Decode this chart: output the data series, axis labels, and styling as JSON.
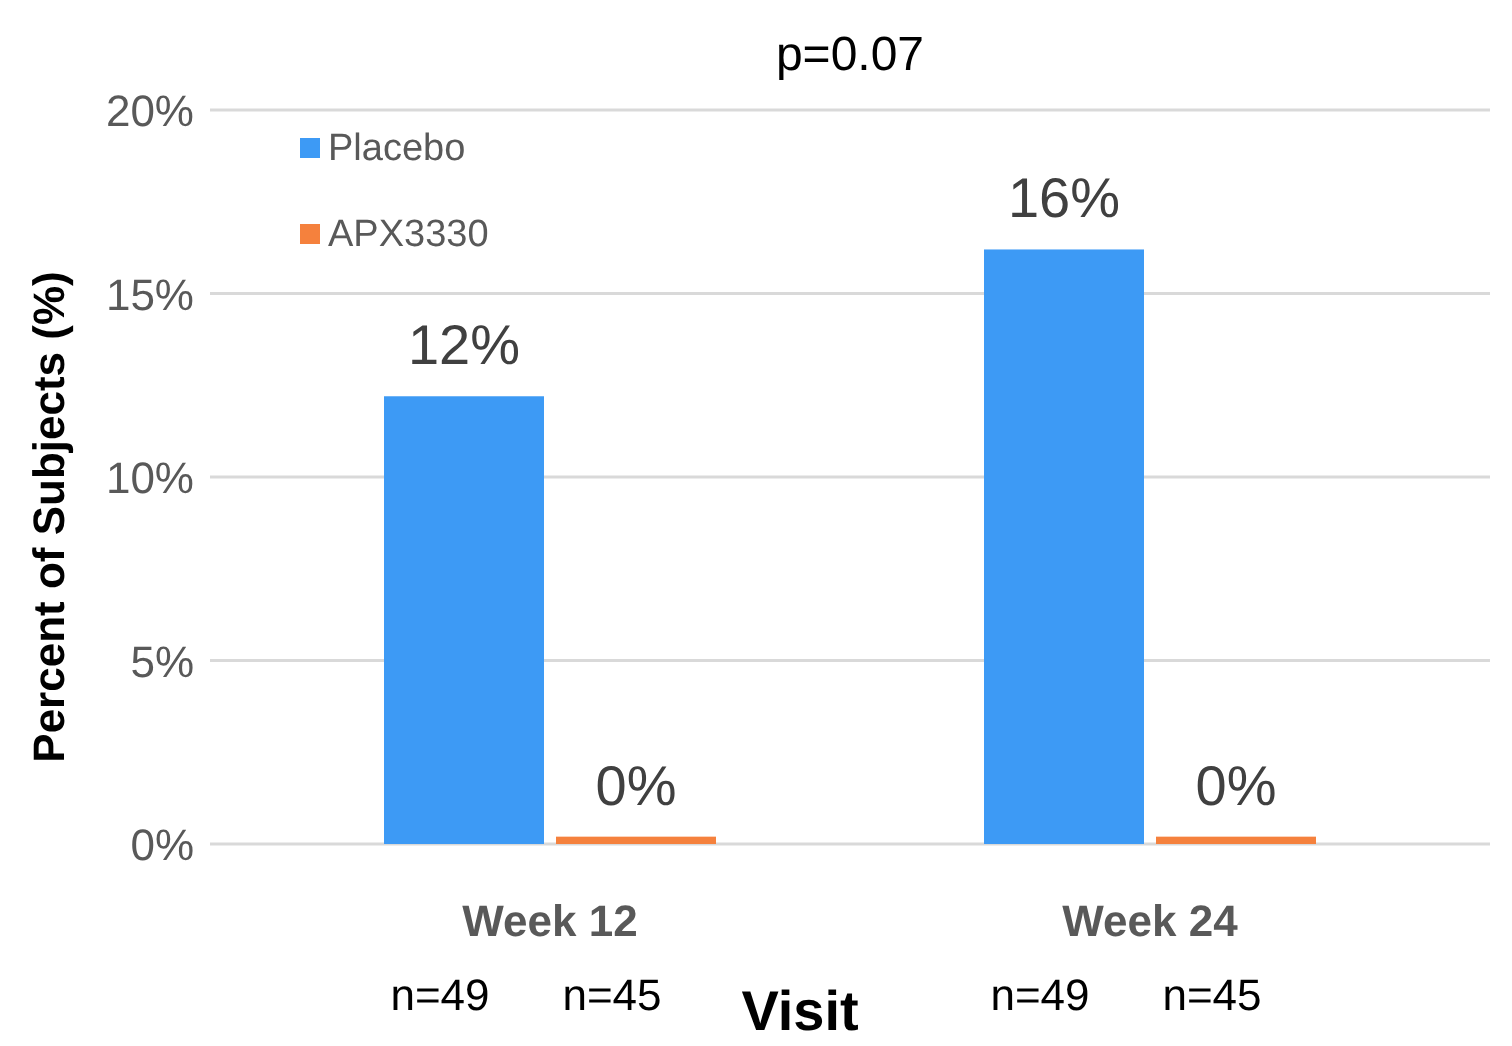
{
  "chart_data": {
    "type": "bar",
    "xlabel": "Visit",
    "ylabel": "Percent of Subjects (%)",
    "categories": [
      "Week 12",
      "Week 24"
    ],
    "series": [
      {
        "name": "Placebo",
        "color": "#3d9af5",
        "values": [
          12.2,
          16.2
        ],
        "value_labels": [
          "12%",
          "16%"
        ]
      },
      {
        "name": "APX3330",
        "color": "#f5813d",
        "values": [
          0.2,
          0.2
        ],
        "value_labels": [
          "0%",
          "0%"
        ]
      }
    ],
    "ylim": [
      0,
      20
    ],
    "yticks": [
      {
        "value": 0,
        "label": "0%"
      },
      {
        "value": 5,
        "label": "5%"
      },
      {
        "value": 10,
        "label": "10%"
      },
      {
        "value": 15,
        "label": "15%"
      },
      {
        "value": 20,
        "label": "20%"
      }
    ],
    "grid": "y",
    "legend": "top left",
    "annotations": [
      "p=0.07",
      "n=49",
      "n=45",
      "n=49",
      "n=45"
    ]
  }
}
